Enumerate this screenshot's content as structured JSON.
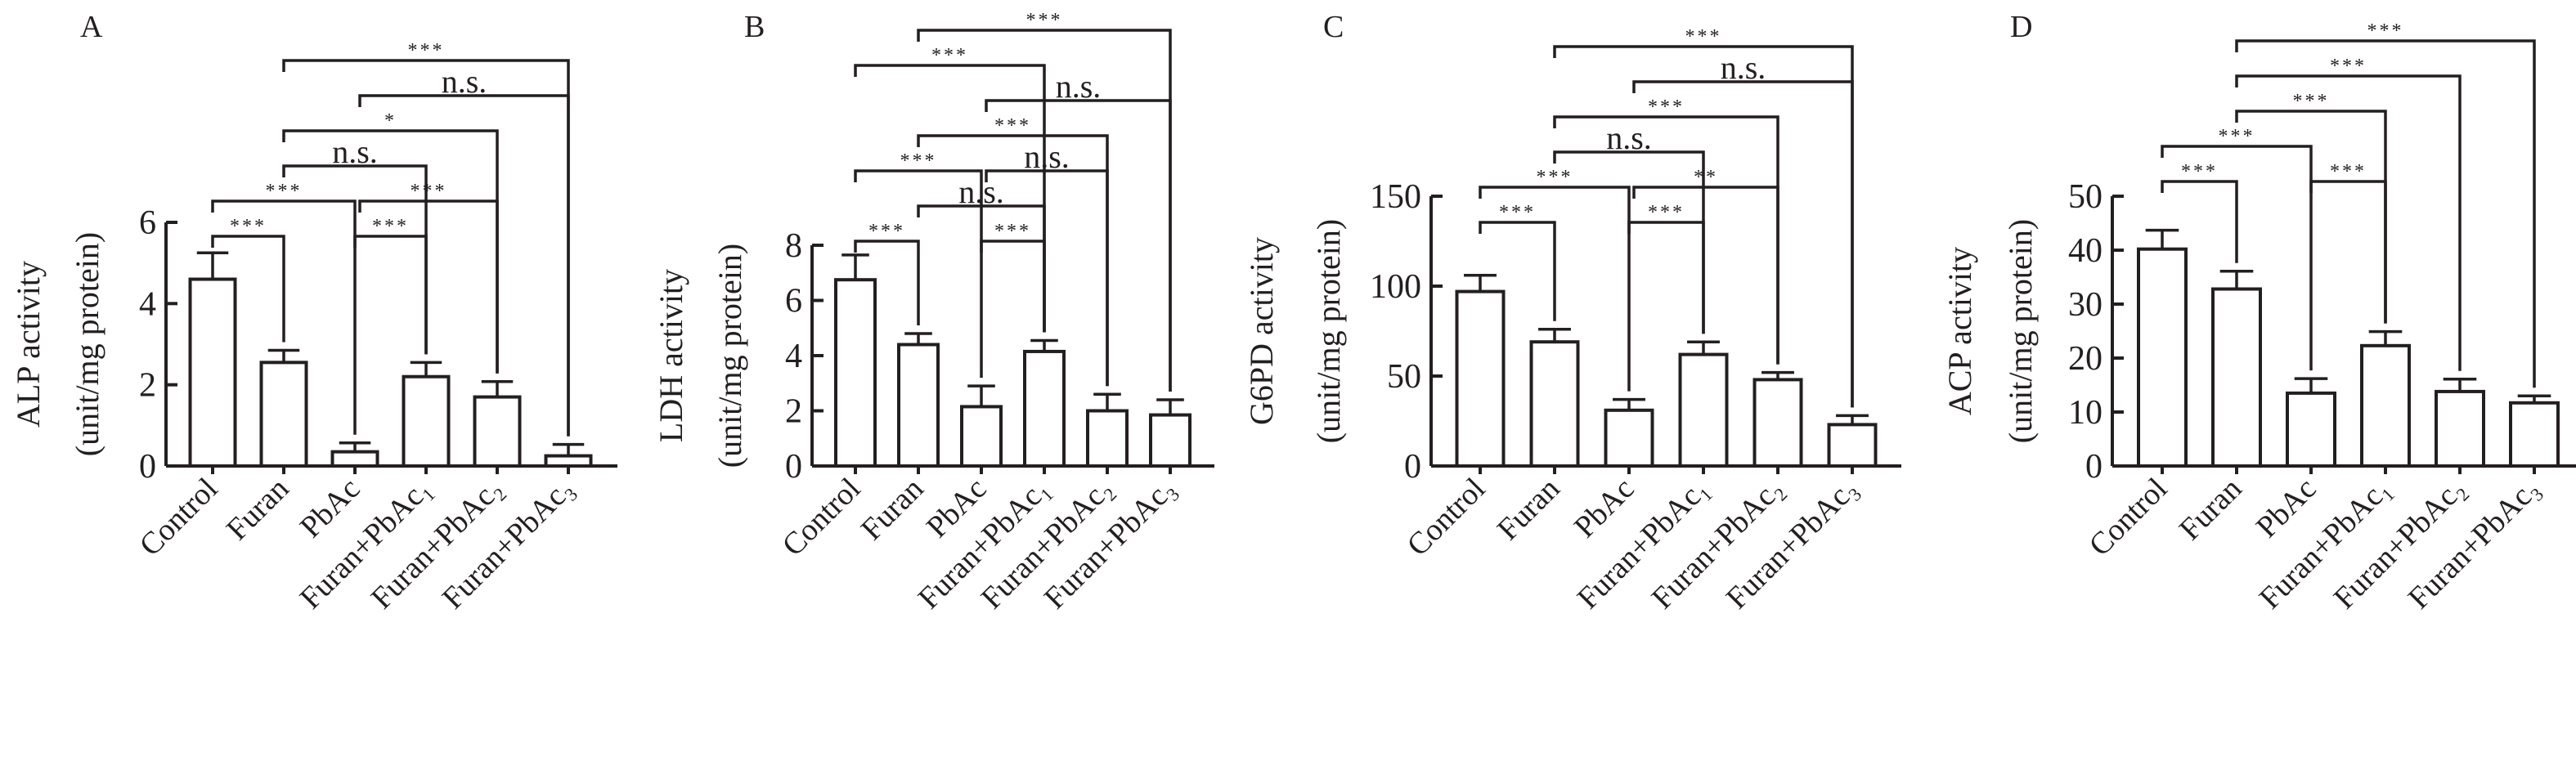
{
  "chart_data": [
    {
      "type": "bar",
      "panel": "A",
      "ylabel": "ALP activity",
      "ylabel_unit": "(unit/mg protein)",
      "categories": [
        "Control",
        "Furan",
        "PbAc",
        "Furan+PbAc₁",
        "Furan+PbAc₂",
        "Furan+PbAc₃"
      ],
      "values": [
        4.6,
        2.55,
        0.35,
        2.2,
        1.7,
        0.25
      ],
      "errors": [
        0.65,
        0.3,
        0.22,
        0.35,
        0.38,
        0.28
      ],
      "ylim": [
        0,
        6
      ],
      "yticks": [
        "0",
        "2",
        "4",
        "6"
      ],
      "comparisons": [
        {
          "from": 0,
          "to": 1,
          "label": "***",
          "level": 0
        },
        {
          "from": 2,
          "to": 3,
          "label": "***",
          "level": 0
        },
        {
          "from": 0,
          "to": 2,
          "label": "***",
          "level": 1
        },
        {
          "from": 2,
          "to": 4,
          "label": "***",
          "level": 1
        },
        {
          "from": 1,
          "to": 3,
          "label": "n.s.",
          "level": 2
        },
        {
          "from": 1,
          "to": 4,
          "label": "*",
          "level": 3
        },
        {
          "from": 2,
          "to": 5,
          "label": "n.s.",
          "level": 4
        },
        {
          "from": 1,
          "to": 5,
          "label": "***",
          "level": 5
        }
      ]
    },
    {
      "type": "bar",
      "panel": "B",
      "ylabel": "LDH activity",
      "ylabel_unit": "(unit/mg protein)",
      "categories": [
        "Control",
        "Furan",
        "PbAc",
        "Furan+PbAc₁",
        "Furan+PbAc₂",
        "Furan+PbAc₃"
      ],
      "values": [
        6.75,
        4.4,
        2.15,
        4.15,
        2.0,
        1.85
      ],
      "errors": [
        0.9,
        0.4,
        0.75,
        0.4,
        0.6,
        0.55
      ],
      "ylim": [
        0,
        8
      ],
      "yticks": [
        "0",
        "2",
        "4",
        "6",
        "8"
      ],
      "comparisons": [
        {
          "from": 0,
          "to": 1,
          "label": "***",
          "level": 0
        },
        {
          "from": 2,
          "to": 3,
          "label": "***",
          "level": 0
        },
        {
          "from": 1,
          "to": 3,
          "label": "n.s.",
          "level": 1
        },
        {
          "from": 0,
          "to": 2,
          "label": "***",
          "level": 2
        },
        {
          "from": 2,
          "to": 4,
          "label": "n.s.",
          "level": 2
        },
        {
          "from": 1,
          "to": 4,
          "label": "***",
          "level": 3
        },
        {
          "from": 2,
          "to": 5,
          "label": "n.s.",
          "level": 4
        },
        {
          "from": 0,
          "to": 3,
          "label": "***",
          "level": 5
        },
        {
          "from": 1,
          "to": 5,
          "label": "***",
          "level": 6
        }
      ]
    },
    {
      "type": "bar",
      "panel": "C",
      "ylabel": "G6PD activity",
      "ylabel_unit": "(unit/mg protein)",
      "categories": [
        "Control",
        "Furan",
        "PbAc",
        "Furan+PbAc₁",
        "Furan+PbAc₂",
        "Furan+PbAc₃"
      ],
      "values": [
        97,
        69,
        31,
        62,
        48,
        23
      ],
      "errors": [
        9,
        7,
        6,
        7,
        4,
        5
      ],
      "ylim": [
        0,
        150
      ],
      "yticks": [
        "0",
        "50",
        "100",
        "150"
      ],
      "comparisons": [
        {
          "from": 0,
          "to": 1,
          "label": "***",
          "level": 0
        },
        {
          "from": 2,
          "to": 3,
          "label": "***",
          "level": 0
        },
        {
          "from": 0,
          "to": 2,
          "label": "***",
          "level": 1
        },
        {
          "from": 2,
          "to": 4,
          "label": "**",
          "level": 1
        },
        {
          "from": 1,
          "to": 3,
          "label": "n.s.",
          "level": 2
        },
        {
          "from": 1,
          "to": 4,
          "label": "***",
          "level": 3
        },
        {
          "from": 2,
          "to": 5,
          "label": "n.s.",
          "level": 4
        },
        {
          "from": 1,
          "to": 5,
          "label": "***",
          "level": 5
        }
      ]
    },
    {
      "type": "bar",
      "panel": "D",
      "ylabel": "ACP activity",
      "ylabel_unit": "(unit/mg protein)",
      "categories": [
        "Control",
        "Furan",
        "PbAc",
        "Furan+PbAc₁",
        "Furan+PbAc₂",
        "Furan+PbAc₃"
      ],
      "values": [
        40.2,
        32.8,
        13.5,
        22.3,
        13.8,
        11.7
      ],
      "errors": [
        3.5,
        3.3,
        2.7,
        2.6,
        2.3,
        1.3
      ],
      "ylim": [
        0,
        50
      ],
      "yticks": [
        "0",
        "10",
        "20",
        "30",
        "40",
        "50"
      ],
      "comparisons": [
        {
          "from": 0,
          "to": 1,
          "label": "***",
          "level": 0
        },
        {
          "from": 2,
          "to": 3,
          "label": "***",
          "level": 0
        },
        {
          "from": 0,
          "to": 2,
          "label": "***",
          "level": 1
        },
        {
          "from": 1,
          "to": 3,
          "label": "***",
          "level": 2
        },
        {
          "from": 1,
          "to": 4,
          "label": "***",
          "level": 3
        },
        {
          "from": 1,
          "to": 5,
          "label": "***",
          "level": 4
        }
      ]
    }
  ]
}
